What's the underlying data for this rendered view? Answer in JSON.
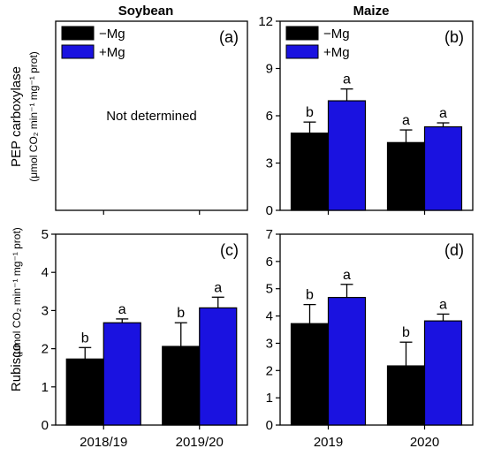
{
  "column_titles": [
    "Soybean",
    "Maize"
  ],
  "legend": [
    {
      "label": "−Mg",
      "color": "#000000"
    },
    {
      "label": "+Mg",
      "color": "#1a12e0"
    }
  ],
  "row_labels": [
    {
      "main": "PEP carboxylase",
      "unit": "(μmol CO₂ min⁻¹ mg⁻¹ prot)"
    },
    {
      "main": "Rubisco",
      "unit": "(μmol CO₂ min⁻¹ mg⁻¹ prot)"
    }
  ],
  "chart_data": [
    {
      "panel": "(a)",
      "type": "bar",
      "categories": [],
      "series": [],
      "annotation": "Not determined",
      "yticks": [],
      "ylim": null
    },
    {
      "panel": "(b)",
      "type": "bar",
      "categories": [
        "2019",
        "2020"
      ],
      "series": [
        {
          "name": "−Mg",
          "color": "#000000",
          "values": [
            4.9,
            4.3
          ],
          "errors": [
            0.7,
            0.8
          ],
          "letters": [
            "b",
            "a"
          ]
        },
        {
          "name": "+Mg",
          "color": "#1a12e0",
          "values": [
            6.95,
            5.3
          ],
          "errors": [
            0.75,
            0.25
          ],
          "letters": [
            "a",
            "a"
          ]
        }
      ],
      "ylim": [
        0,
        12
      ],
      "yticks": [
        0,
        3,
        6,
        9,
        12
      ]
    },
    {
      "panel": "(c)",
      "type": "bar",
      "categories": [
        "2018/19",
        "2019/20"
      ],
      "series": [
        {
          "name": "−Mg",
          "color": "#000000",
          "values": [
            1.73,
            2.06
          ],
          "errors": [
            0.3,
            0.62
          ],
          "letters": [
            "b",
            "b"
          ]
        },
        {
          "name": "+Mg",
          "color": "#1a12e0",
          "values": [
            2.68,
            3.07
          ],
          "errors": [
            0.1,
            0.28
          ],
          "letters": [
            "a",
            "a"
          ]
        }
      ],
      "ylim": [
        0,
        5
      ],
      "yticks": [
        0,
        1,
        2,
        3,
        4,
        5
      ]
    },
    {
      "panel": "(d)",
      "type": "bar",
      "categories": [
        "2019",
        "2020"
      ],
      "series": [
        {
          "name": "−Mg",
          "color": "#000000",
          "values": [
            3.72,
            2.17
          ],
          "errors": [
            0.7,
            0.87
          ],
          "letters": [
            "b",
            "b"
          ]
        },
        {
          "name": "+Mg",
          "color": "#1a12e0",
          "values": [
            4.68,
            3.82
          ],
          "errors": [
            0.48,
            0.25
          ],
          "letters": [
            "a",
            "a"
          ]
        }
      ],
      "ylim": [
        0,
        7
      ],
      "yticks": [
        0,
        1,
        2,
        3,
        4,
        5,
        6,
        7
      ]
    }
  ]
}
